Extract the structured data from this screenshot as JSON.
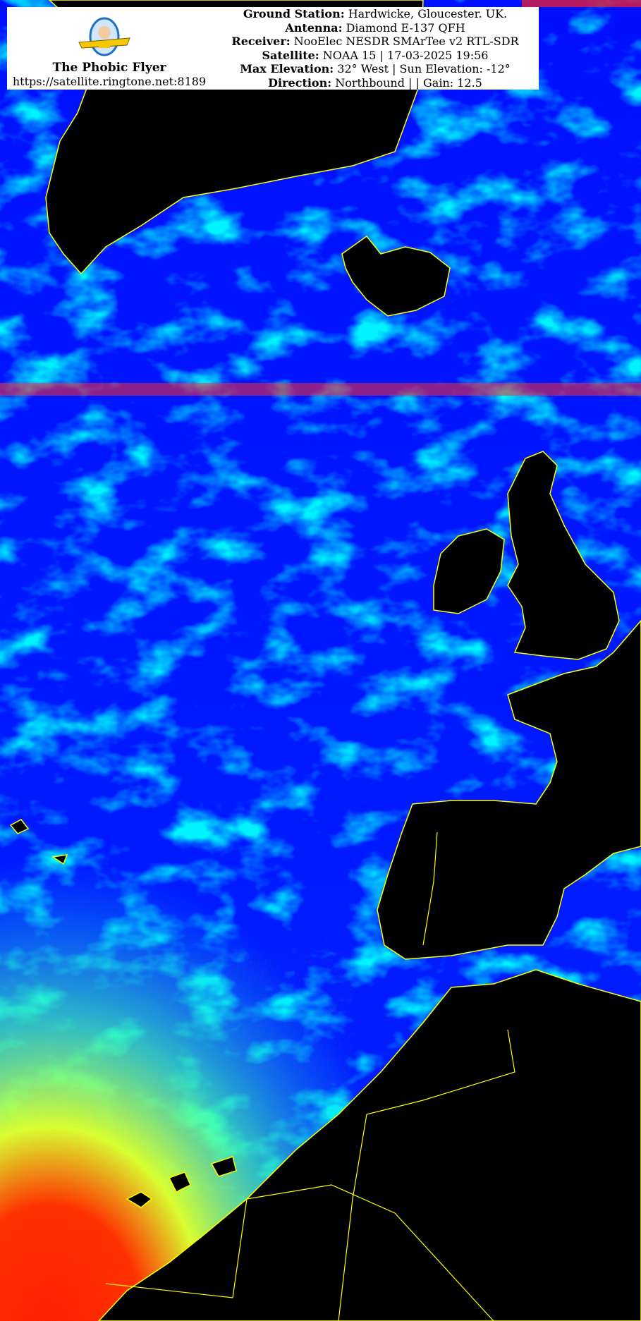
{
  "brand": {
    "name": "The Phobic Flyer",
    "url": "https://satellite.ringtone.net:8189",
    "logo_text": "The Phobic Flyer"
  },
  "details": [
    {
      "label": "Ground Station:",
      "value": "Hardwicke, Gloucester. UK."
    },
    {
      "label": "Antenna:",
      "value": "Diamond E-137 QFH"
    },
    {
      "label": "Receiver:",
      "value": "NooElec NESDR SMArTee v2 RTL-SDR"
    },
    {
      "label": "Satellite:",
      "value": "NOAA 15 | 17-03-2025 19:56"
    },
    {
      "label": "Max Elevation:",
      "value": "32° West | Sun Elevation: -12°"
    },
    {
      "label": "Direction:",
      "value": "Northbound | | Gain: 12.5"
    }
  ],
  "colors": {
    "ocean": "#0000ff",
    "cloud": "#00e5ff",
    "land": "#000000",
    "coastline": "#ffff00",
    "hot": "#ff0000",
    "warm": "#ccff33"
  }
}
